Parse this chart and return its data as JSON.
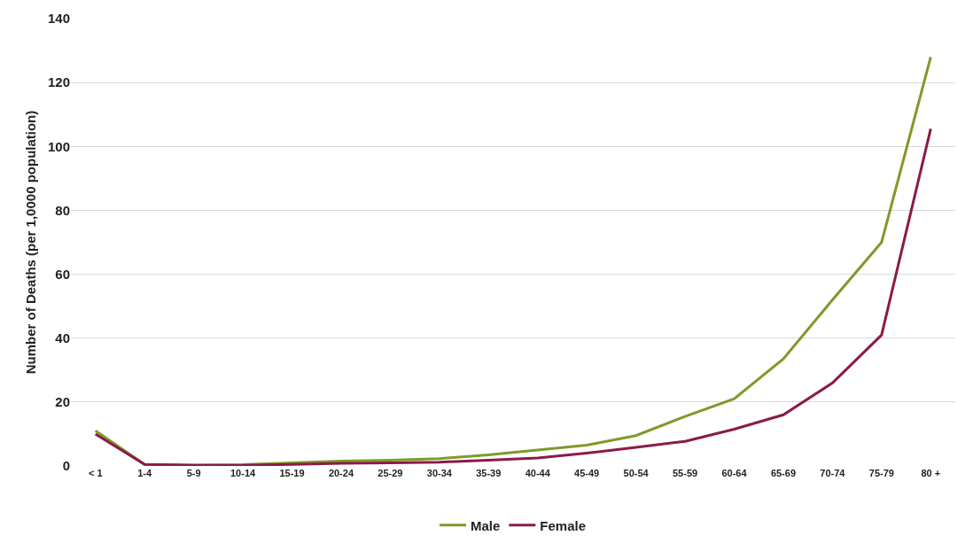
{
  "chart_data": {
    "type": "line",
    "ylabel": "Number of Deaths (per 1,0000 population)",
    "categories": [
      "< 1",
      "1-4",
      "5-9",
      "10-14",
      "15-19",
      "20-24",
      "25-29",
      "30-34",
      "35-39",
      "40-44",
      "45-49",
      "50-54",
      "55-59",
      "60-64",
      "65-69",
      "70-74",
      "75-79",
      "80 +"
    ],
    "series": [
      {
        "name": "Male",
        "color": "#7f9a2a",
        "values": [
          11,
          0.5,
          0.3,
          0.4,
          1,
          1.5,
          1.8,
          2.3,
          3.5,
          5,
          6.5,
          9.5,
          15.5,
          21,
          33.5,
          52,
          70,
          128
        ]
      },
      {
        "name": "Female",
        "color": "#8b1a4a",
        "values": [
          10,
          0.5,
          0.2,
          0.2,
          0.5,
          0.8,
          1,
          1.2,
          1.8,
          2.5,
          4,
          5.8,
          7.7,
          11.5,
          16,
          26,
          41,
          105.5
        ]
      }
    ],
    "ylim": [
      0,
      140
    ],
    "yticks": [
      0,
      20,
      40,
      60,
      80,
      100,
      120,
      140
    ],
    "grid": "y",
    "legend": "bottom",
    "marker": "none",
    "line_style": "solid"
  }
}
